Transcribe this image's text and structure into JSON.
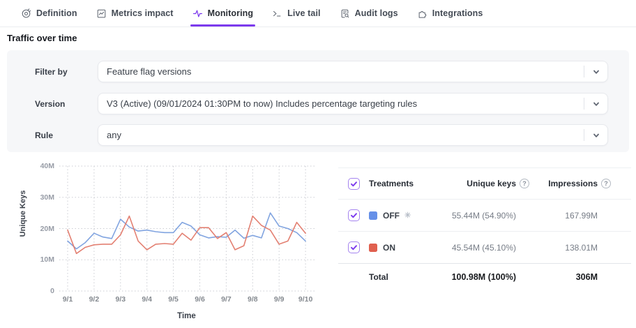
{
  "tabs": {
    "items": [
      {
        "label": "Definition",
        "icon": "target-icon",
        "active": false
      },
      {
        "label": "Metrics impact",
        "icon": "chart-icon",
        "active": false
      },
      {
        "label": "Monitoring",
        "icon": "pulse-icon",
        "active": true
      },
      {
        "label": "Live tail",
        "icon": "terminal-icon",
        "active": false
      },
      {
        "label": "Audit logs",
        "icon": "document-search-icon",
        "active": false
      },
      {
        "label": "Integrations",
        "icon": "puzzle-icon",
        "active": false
      }
    ],
    "accent_color": "#7c3aed"
  },
  "section_title": "Traffic over time",
  "filters": {
    "rows": [
      {
        "label": "Filter by",
        "value": "Feature flag versions"
      },
      {
        "label": "Version",
        "value": "V3 (Active) (09/01/2024 01:30PM to now) Includes percentage targeting rules"
      },
      {
        "label": "Rule",
        "value": "any"
      }
    ]
  },
  "chart_data": {
    "type": "line",
    "xlabel": "Time",
    "ylabel": "Unique Keys",
    "x_categories": [
      "9/1",
      "9/2",
      "9/3",
      "9/4",
      "9/5",
      "9/6",
      "9/7",
      "9/8",
      "9/9",
      "9/10"
    ],
    "points_per_day": 3,
    "unit": "millions of unique keys",
    "ylim_millions": [
      0,
      40
    ],
    "ytick_labels": [
      "0",
      "10M",
      "20M",
      "30M",
      "40M"
    ],
    "grid": "dotted",
    "series": [
      {
        "name": "OFF",
        "color": "#7a9fde",
        "values_millions": [
          16,
          13.5,
          15.5,
          18.5,
          17.3,
          16.8,
          23,
          20.5,
          19.2,
          19.5,
          19,
          18.7,
          18.7,
          22,
          20.8,
          18,
          17,
          17.4,
          17.2,
          19.5,
          16.9,
          17.8,
          17,
          25,
          20.8,
          20,
          18.7,
          16
        ]
      },
      {
        "name": "ON",
        "color": "#e2796a",
        "values_millions": [
          19.5,
          12,
          14,
          14.8,
          15,
          15,
          18,
          24,
          16,
          13.2,
          15,
          15.2,
          15,
          18.5,
          16.3,
          20.3,
          20.3,
          16.8,
          18.7,
          13.2,
          14.5,
          24,
          21,
          19.5,
          15,
          16,
          22,
          18.5
        ]
      }
    ]
  },
  "treatments_table": {
    "headers": {
      "treatments": "Treatments",
      "unique_keys": "Unique keys",
      "impressions": "Impressions"
    },
    "rows": [
      {
        "label": "OFF",
        "swatch_color": "#6690e8",
        "default_badge": "✳",
        "unique_keys": "55.44M (54.90%)",
        "impressions": "167.99M",
        "checked": true
      },
      {
        "label": "ON",
        "swatch_color": "#e0604f",
        "default_badge": "",
        "unique_keys": "45.54M (45.10%)",
        "impressions": "138.01M",
        "checked": true
      }
    ],
    "total": {
      "label": "Total",
      "unique_keys": "100.98M (100%)",
      "impressions": "306M"
    }
  }
}
